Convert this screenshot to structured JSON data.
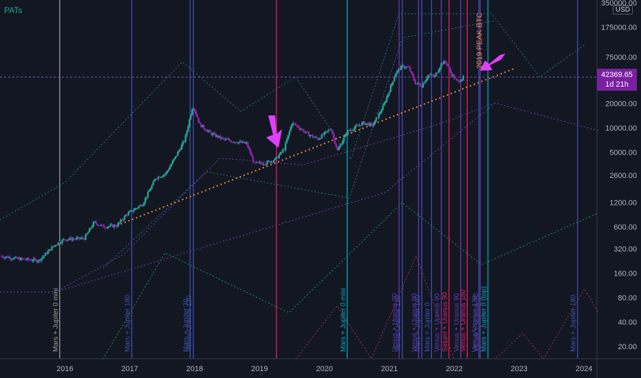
{
  "indicator": "PATs",
  "currency": "USD",
  "last_price": "42369.65",
  "countdown": "1d 21h",
  "chart_data": {
    "type": "candlestick",
    "log_scale": true,
    "x_range": [
      2015.0,
      2024.2
    ],
    "y_range": [
      14,
      380000
    ],
    "x_ticks": [
      "2016",
      "2017",
      "2018",
      "2019",
      "2020",
      "2021",
      "2022",
      "2023",
      "2024"
    ],
    "x_tick_values": [
      2016.0,
      2017.0,
      2018.0,
      2019.0,
      2020.0,
      2021.0,
      2022.0,
      2023.0,
      2024.0
    ],
    "y_ticks": [
      "350000.00",
      "175000.00",
      "75000.00",
      "20000.00",
      "10000.00",
      "5000.00",
      "2600.00",
      "1200.00",
      "600.00",
      "320.00",
      "160.00",
      "80.00",
      "40.00",
      "20.00"
    ],
    "y_tick_values": [
      350000,
      175000,
      75000,
      20000,
      10000,
      5000,
      2600,
      1200,
      600,
      320,
      160,
      80,
      40,
      20
    ],
    "price_path": [
      [
        2015.0,
        260
      ],
      [
        2015.3,
        240
      ],
      [
        2015.6,
        230
      ],
      [
        2015.85,
        360
      ],
      [
        2016.0,
        420
      ],
      [
        2016.3,
        430
      ],
      [
        2016.45,
        680
      ],
      [
        2016.6,
        600
      ],
      [
        2016.8,
        620
      ],
      [
        2016.95,
        850
      ],
      [
        2017.2,
        1150
      ],
      [
        2017.4,
        2400
      ],
      [
        2017.55,
        2700
      ],
      [
        2017.7,
        4300
      ],
      [
        2017.85,
        7200
      ],
      [
        2017.97,
        19000
      ],
      [
        2018.08,
        11000
      ],
      [
        2018.25,
        8500
      ],
      [
        2018.45,
        7200
      ],
      [
        2018.6,
        6800
      ],
      [
        2018.8,
        6400
      ],
      [
        2018.92,
        3600
      ],
      [
        2019.1,
        3700
      ],
      [
        2019.25,
        4100
      ],
      [
        2019.38,
        5500
      ],
      [
        2019.5,
        11500
      ],
      [
        2019.6,
        10200
      ],
      [
        2019.75,
        8300
      ],
      [
        2019.9,
        7300
      ],
      [
        2020.1,
        9800
      ],
      [
        2020.2,
        5200
      ],
      [
        2020.35,
        9000
      ],
      [
        2020.6,
        11500
      ],
      [
        2020.75,
        10800
      ],
      [
        2020.9,
        18000
      ],
      [
        2021.0,
        29000
      ],
      [
        2021.1,
        48000
      ],
      [
        2021.2,
        58000
      ],
      [
        2021.3,
        55000
      ],
      [
        2021.4,
        36000
      ],
      [
        2021.5,
        33000
      ],
      [
        2021.6,
        45000
      ],
      [
        2021.7,
        43000
      ],
      [
        2021.8,
        62000
      ],
      [
        2021.87,
        66000
      ],
      [
        2021.95,
        47000
      ],
      [
        2022.05,
        37000
      ],
      [
        2022.15,
        42369
      ]
    ],
    "trendline": {
      "from": [
        2016.8,
        620
      ],
      "to": [
        2022.95,
        55000
      ]
    },
    "horizontal_line": 42369.65,
    "vertical_lines": [
      {
        "label": "Mars + Jupiter 0 mini",
        "x": 2015.92,
        "color": "#9e9e9e"
      },
      {
        "label": "Mars + Jupiter 180",
        "x": 2017.03,
        "color": "#3f51b5"
      },
      {
        "label": "Mars + Jupiter 30",
        "x": 2017.93,
        "color": "#3f51b5"
      },
      {
        "label": "Venus/Uranus 120",
        "x": 2017.98,
        "color": "#3f51b5"
      },
      {
        "label": "",
        "x": 2019.26,
        "color": "#e91e63"
      },
      {
        "label": "Mars + Jupiter 0 mini",
        "x": 2020.35,
        "color": "#00acc1"
      },
      {
        "label": "Venus + Uranus 90",
        "x": 2021.15,
        "color": "#673ab7"
      },
      {
        "label": "Venus/Uranus 120",
        "x": 2021.2,
        "color": "#3f51b5"
      },
      {
        "label": "Venus + Uranus 90",
        "x": 2021.45,
        "color": "#673ab7"
      },
      {
        "label": "Mars + Jupiter 180",
        "x": 2021.5,
        "color": "#3f51b5"
      },
      {
        "label": "Mars + Jupiter 0",
        "x": 2021.65,
        "color": "#3f51b5"
      },
      {
        "label": "Venus + Uranus 90",
        "x": 2021.8,
        "color": "#673ab7"
      },
      {
        "label": "Saturn + Uranus 90",
        "x": 2021.92,
        "color": "#e91e63"
      },
      {
        "label": "Venus + Uranus 90",
        "x": 2022.1,
        "color": "#673ab7"
      },
      {
        "label": "Venus + Uranus 180",
        "x": 2022.2,
        "color": "#e91e63"
      },
      {
        "label": "Venus/Uranus 120",
        "x": 2022.38,
        "color": "#3f51b5"
      },
      {
        "label": "Venus + Uranus 90",
        "x": 2022.4,
        "color": "#673ab7"
      },
      {
        "label": "Mars + Jupiter 0 (top)",
        "x": 2022.52,
        "color": "#00acc1"
      },
      {
        "label": "Mars + Jupiter 180",
        "x": 2023.9,
        "color": "#3f51b5"
      }
    ],
    "peak_label": "2019 PEAK BTC",
    "peak_label_x": 2022.3
  }
}
